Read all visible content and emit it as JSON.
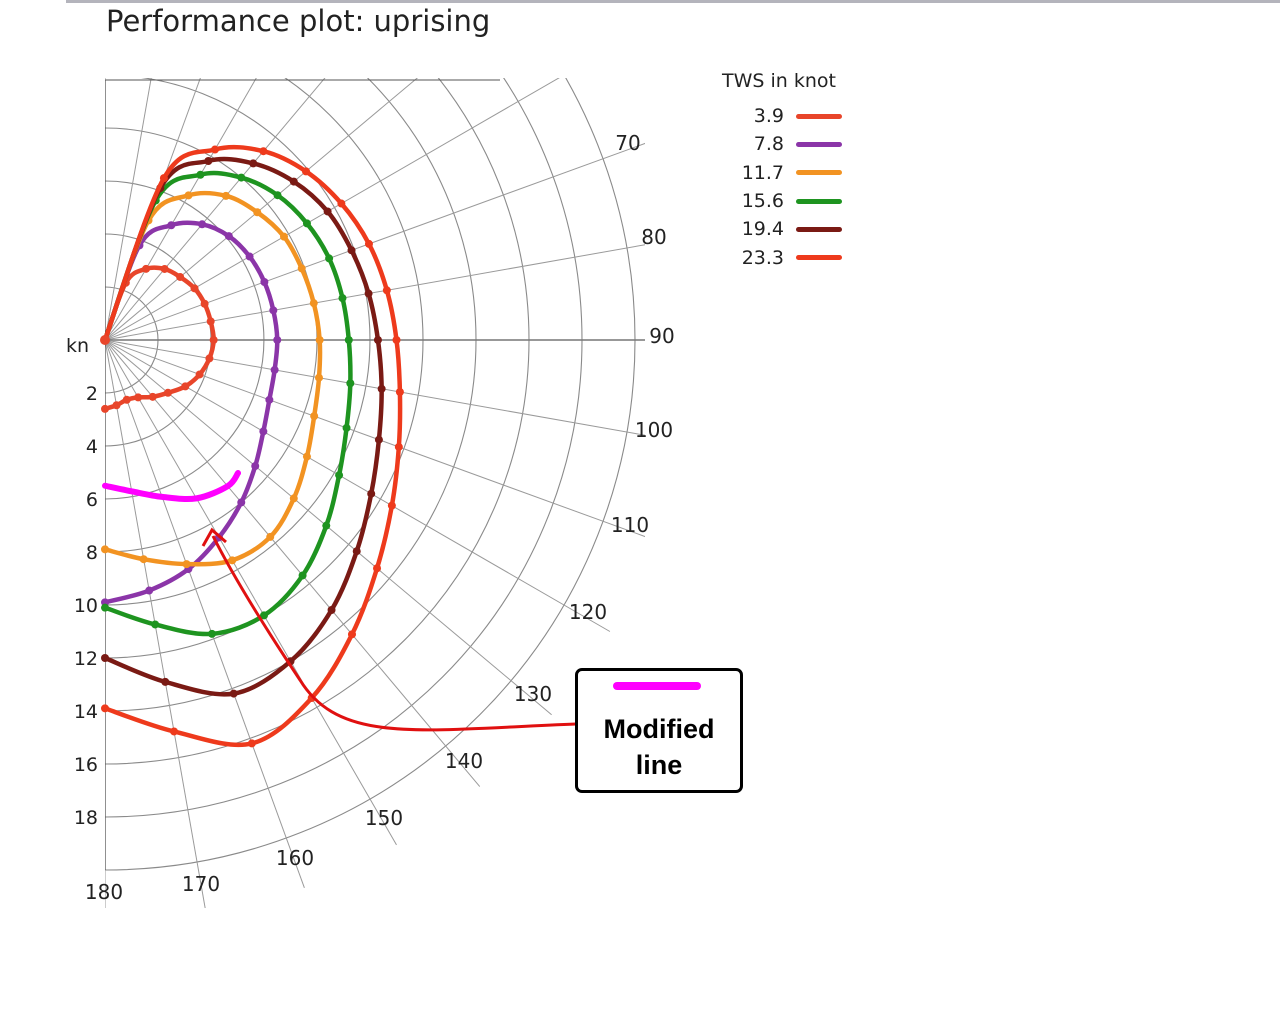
{
  "page": {
    "title": "Performance plot: uprising"
  },
  "chart_data": {
    "type": "polar-line",
    "title": "Performance plot: uprising",
    "angle_unit": "degrees (true wind angle)",
    "radial_label": "kn",
    "radial_ticks": [
      "2",
      "4",
      "6",
      "8",
      "10",
      "12",
      "14",
      "16",
      "18"
    ],
    "angle_ticks": [
      "70",
      "80",
      "90",
      "100",
      "110",
      "120",
      "130",
      "140",
      "150",
      "160",
      "170",
      "180"
    ],
    "legend_title": "TWS in knot",
    "legend_placement": "top-right",
    "grid": true,
    "series": [
      {
        "name": "3.9",
        "color": "#e8452a",
        "points": [
          [
            0,
            0
          ],
          [
            20,
            2.3
          ],
          [
            30,
            3.1
          ],
          [
            40,
            3.5
          ],
          [
            50,
            3.7
          ],
          [
            60,
            3.9
          ],
          [
            70,
            4.0
          ],
          [
            80,
            4.05
          ],
          [
            90,
            4.1
          ],
          [
            100,
            4.0
          ],
          [
            110,
            3.8
          ],
          [
            120,
            3.5
          ],
          [
            130,
            3.1
          ],
          [
            140,
            2.8
          ],
          [
            150,
            2.5
          ],
          [
            160,
            2.4
          ],
          [
            170,
            2.5
          ],
          [
            180,
            2.6
          ]
        ]
      },
      {
        "name": "7.8",
        "color": "#8b35a8",
        "points": [
          [
            0,
            0
          ],
          [
            20,
            3.8
          ],
          [
            30,
            5.0
          ],
          [
            40,
            5.7
          ],
          [
            50,
            6.1
          ],
          [
            60,
            6.3
          ],
          [
            70,
            6.4
          ],
          [
            80,
            6.45
          ],
          [
            90,
            6.5
          ],
          [
            100,
            6.5
          ],
          [
            110,
            6.6
          ],
          [
            120,
            6.9
          ],
          [
            130,
            7.4
          ],
          [
            140,
            8.0
          ],
          [
            150,
            8.6
          ],
          [
            160,
            9.2
          ],
          [
            170,
            9.6
          ],
          [
            180,
            9.9
          ]
        ]
      },
      {
        "name": "11.7",
        "color": "#f29322",
        "points": [
          [
            0,
            0
          ],
          [
            20,
            4.8
          ],
          [
            30,
            6.3
          ],
          [
            40,
            7.1
          ],
          [
            50,
            7.5
          ],
          [
            60,
            7.8
          ],
          [
            70,
            7.9
          ],
          [
            80,
            8.0
          ],
          [
            90,
            8.1
          ],
          [
            100,
            8.2
          ],
          [
            110,
            8.4
          ],
          [
            120,
            8.8
          ],
          [
            130,
            9.3
          ],
          [
            140,
            9.7
          ],
          [
            150,
            9.6
          ],
          [
            160,
            9.0
          ],
          [
            170,
            8.4
          ],
          [
            180,
            7.9
          ]
        ]
      },
      {
        "name": "15.6",
        "color": "#1e9420",
        "points": [
          [
            0,
            0
          ],
          [
            20,
            5.6
          ],
          [
            30,
            7.2
          ],
          [
            40,
            8.0
          ],
          [
            50,
            8.5
          ],
          [
            60,
            8.8
          ],
          [
            70,
            9.0
          ],
          [
            80,
            9.1
          ],
          [
            90,
            9.2
          ],
          [
            100,
            9.4
          ],
          [
            110,
            9.7
          ],
          [
            120,
            10.2
          ],
          [
            130,
            10.9
          ],
          [
            140,
            11.6
          ],
          [
            150,
            12.0
          ],
          [
            160,
            11.8
          ],
          [
            170,
            10.9
          ],
          [
            180,
            10.1
          ]
        ]
      },
      {
        "name": "19.4",
        "color": "#7a1a14",
        "points": [
          [
            0,
            0
          ],
          [
            20,
            6.1
          ],
          [
            30,
            7.8
          ],
          [
            40,
            8.7
          ],
          [
            50,
            9.3
          ],
          [
            60,
            9.7
          ],
          [
            70,
            9.9
          ],
          [
            80,
            10.1
          ],
          [
            90,
            10.3
          ],
          [
            100,
            10.6
          ],
          [
            110,
            11.0
          ],
          [
            120,
            11.6
          ],
          [
            130,
            12.4
          ],
          [
            140,
            13.3
          ],
          [
            150,
            14.0
          ],
          [
            160,
            14.2
          ],
          [
            170,
            13.1
          ],
          [
            180,
            12.0
          ]
        ]
      },
      {
        "name": "23.3",
        "color": "#ee3a1c",
        "points": [
          [
            0,
            0
          ],
          [
            20,
            6.5
          ],
          [
            30,
            8.3
          ],
          [
            40,
            9.3
          ],
          [
            50,
            9.9
          ],
          [
            60,
            10.3
          ],
          [
            70,
            10.6
          ],
          [
            80,
            10.8
          ],
          [
            90,
            11.0
          ],
          [
            100,
            11.3
          ],
          [
            110,
            11.8
          ],
          [
            120,
            12.5
          ],
          [
            130,
            13.4
          ],
          [
            140,
            14.5
          ],
          [
            150,
            15.6
          ],
          [
            160,
            16.2
          ],
          [
            170,
            15.0
          ],
          [
            180,
            13.9
          ]
        ]
      }
    ],
    "annotation": {
      "text": "Modified\nline",
      "line_color": "#ff00ff",
      "arrow_color": "#e01010",
      "modified_line_points": [
        [
          180,
          5.5
        ],
        [
          170,
          5.8
        ],
        [
          160,
          6.3
        ],
        [
          150,
          6.9
        ],
        [
          140,
          7.2
        ],
        [
          135,
          7.1
        ]
      ]
    }
  }
}
